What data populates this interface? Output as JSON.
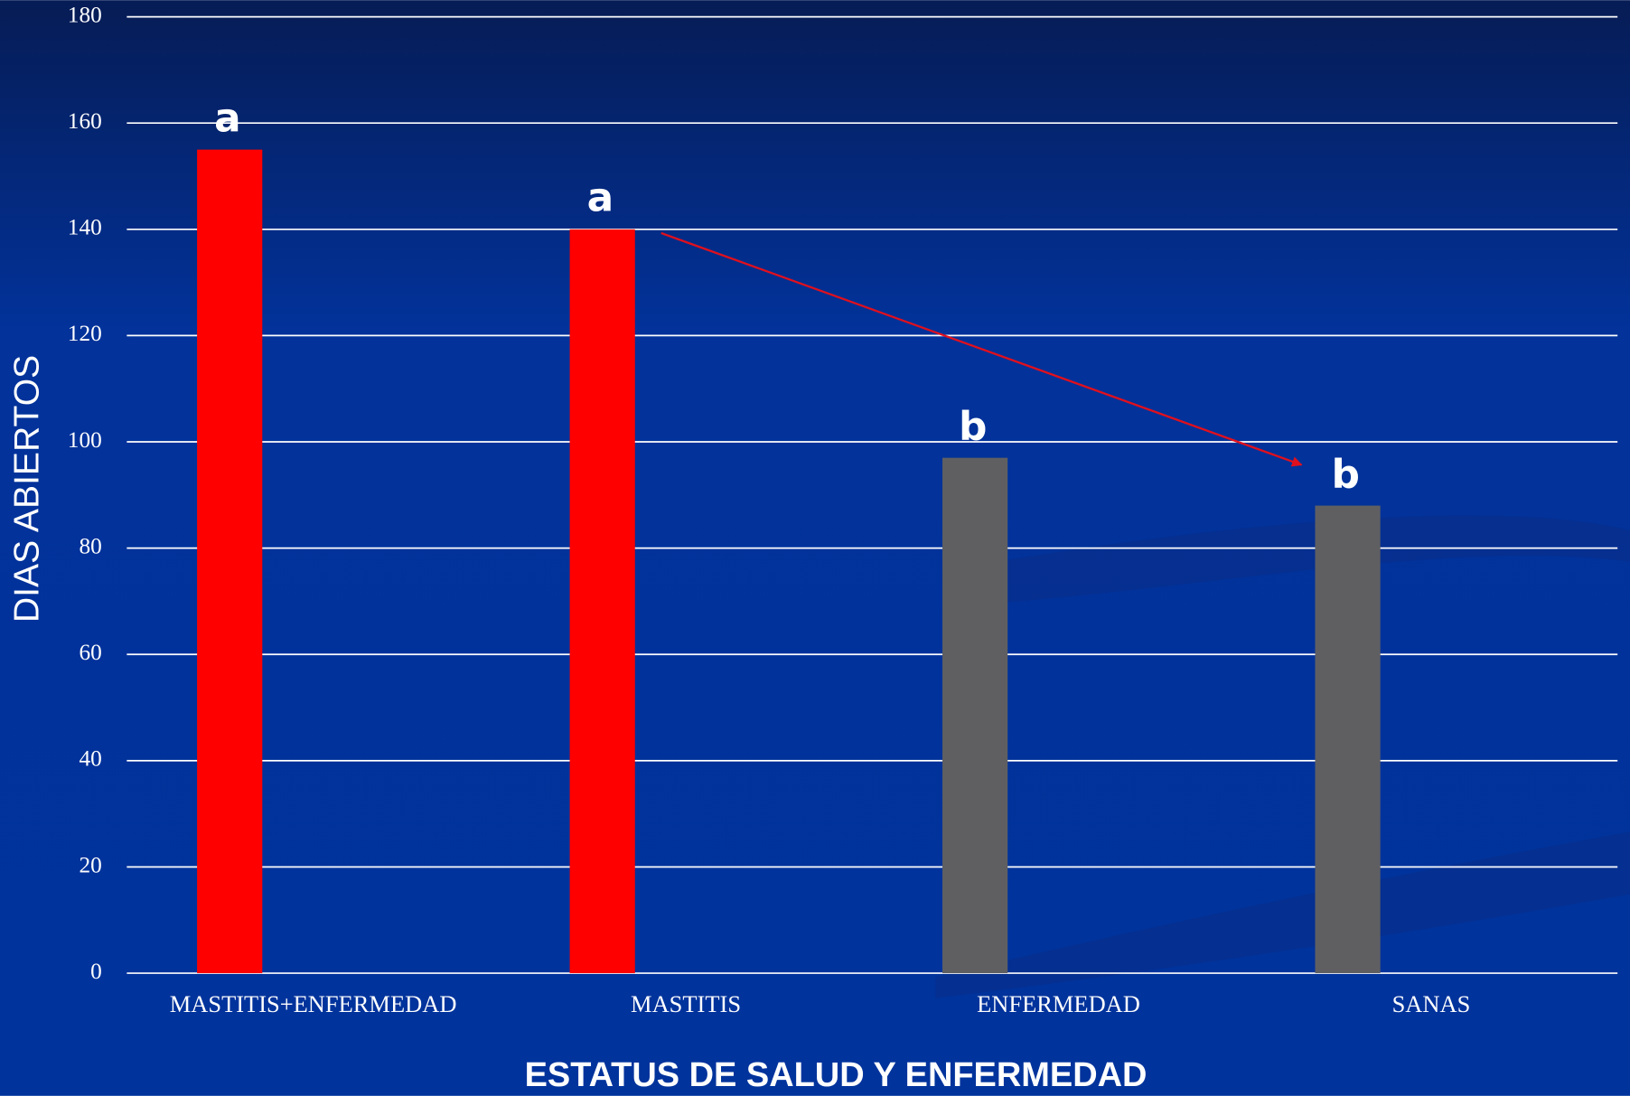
{
  "chart_data": {
    "type": "bar",
    "categories": [
      "MASTITIS+ENFERMEDAD",
      "MASTITIS",
      "ENFERMEDAD",
      "SANAS"
    ],
    "values": [
      155,
      140,
      97,
      88
    ],
    "colors": [
      "#ff0000",
      "#ff0000",
      "#5f5f62",
      "#5f5f62"
    ],
    "annotations": [
      "a",
      "a",
      "b",
      "b"
    ],
    "y_label": "DIAS ABIERTOS",
    "x_label": "ESTATUS DE SALUD Y ENFERMEDAD",
    "ylim": [
      0,
      180
    ],
    "yticks": [
      0,
      20,
      40,
      60,
      80,
      100,
      120,
      140,
      160,
      180
    ],
    "grid": true
  }
}
